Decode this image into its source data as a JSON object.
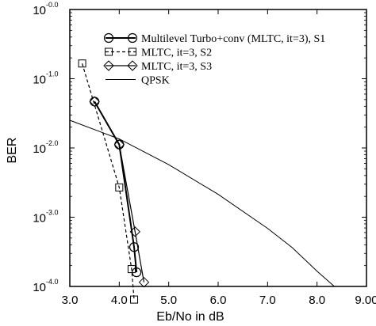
{
  "chart_data": {
    "type": "line",
    "title": "",
    "xlabel": "Eb/No in dB",
    "ylabel": "BER",
    "xlim": [
      3.0,
      9.0
    ],
    "ylim_exponent": [
      -4,
      0
    ],
    "yscale": "log",
    "xticks": [
      {
        "value": 3.0,
        "label": "3.0"
      },
      {
        "value": 4.0,
        "label": "4.0"
      },
      {
        "value": 5.0,
        "label": "5.0"
      },
      {
        "value": 6.0,
        "label": "6.0"
      },
      {
        "value": 7.0,
        "label": "7.0"
      },
      {
        "value": 8.0,
        "label": "8.0"
      },
      {
        "value": 9.0,
        "label": "9.00"
      }
    ],
    "yticks": [
      {
        "exp": 0,
        "base": "10",
        "sup": "-0.0"
      },
      {
        "exp": -1,
        "base": "10",
        "sup": "-1.0"
      },
      {
        "exp": -2,
        "base": "10",
        "sup": "-2.0"
      },
      {
        "exp": -3,
        "base": "10",
        "sup": "-3.0"
      },
      {
        "exp": -4,
        "base": "10",
        "sup": "-4.0"
      }
    ],
    "grid": false,
    "legend_position": "top-right",
    "series": [
      {
        "name": "Multilevel Turbo+conv (MLTC, it=3), S1",
        "marker": "circle",
        "dash": "",
        "width": 2,
        "points": [
          [
            3.5,
            0.0468
          ],
          [
            4.0,
            0.0112
          ],
          [
            4.3,
            0.00037
          ],
          [
            4.35,
            0.00016
          ]
        ]
      },
      {
        "name": "MLTC, it=3, S2",
        "marker": "square",
        "dash": "4,3",
        "width": 1.2,
        "points": [
          [
            3.25,
            0.166
          ],
          [
            4.0,
            0.00269
          ],
          [
            4.25,
            0.000178
          ],
          [
            4.3,
            6.46e-05
          ]
        ]
      },
      {
        "name": "MLTC, it=3, S3",
        "marker": "diamond",
        "dash": "",
        "width": 1.2,
        "points": [
          [
            3.5,
            0.0468
          ],
          [
            4.0,
            0.0112
          ],
          [
            4.32,
            0.000617
          ],
          [
            4.5,
            0.000115
          ]
        ]
      },
      {
        "name": "QPSK",
        "marker": "none",
        "dash": "",
        "width": 1,
        "points": [
          [
            3.0,
            0.0251
          ],
          [
            4.0,
            0.0135
          ],
          [
            5.0,
            0.00575
          ],
          [
            6.0,
            0.00214
          ],
          [
            7.0,
            0.00069
          ],
          [
            7.5,
            0.000363
          ],
          [
            8.0,
            0.000166
          ],
          [
            8.35,
            0.0001
          ]
        ]
      }
    ]
  }
}
